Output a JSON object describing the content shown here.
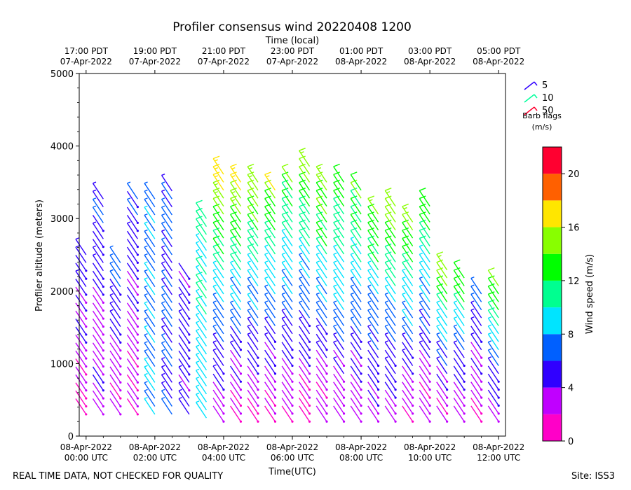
{
  "chart_data": {
    "type": "wind-barb",
    "title": "Profiler consensus wind 20220408 1200",
    "xlabel": "Time(UTC)",
    "xlabel_top": "Time (local)",
    "ylabel": "Profiler altitude (meters)",
    "ylim": [
      0,
      5000
    ],
    "y_ticks": [
      "0",
      "1000",
      "2000",
      "3000",
      "4000",
      "5000"
    ],
    "x_range_hours": [
      -0.2,
      12.2
    ],
    "x_ticks_bottom": [
      {
        "hour": 0,
        "line1": "08-Apr-2022",
        "line2": "00:00 UTC"
      },
      {
        "hour": 2,
        "line1": "08-Apr-2022",
        "line2": "02:00 UTC"
      },
      {
        "hour": 4,
        "line1": "08-Apr-2022",
        "line2": "04:00 UTC"
      },
      {
        "hour": 6,
        "line1": "08-Apr-2022",
        "line2": "06:00 UTC"
      },
      {
        "hour": 8,
        "line1": "08-Apr-2022",
        "line2": "08:00 UTC"
      },
      {
        "hour": 10,
        "line1": "08-Apr-2022",
        "line2": "10:00 UTC"
      },
      {
        "hour": 12,
        "line1": "08-Apr-2022",
        "line2": "12:00 UTC"
      }
    ],
    "x_ticks_top": [
      {
        "hour": 0,
        "line1": "17:00 PDT",
        "line2": "07-Apr-2022"
      },
      {
        "hour": 2,
        "line1": "19:00 PDT",
        "line2": "07-Apr-2022"
      },
      {
        "hour": 4,
        "line1": "21:00 PDT",
        "line2": "07-Apr-2022"
      },
      {
        "hour": 6,
        "line1": "23:00 PDT",
        "line2": "07-Apr-2022"
      },
      {
        "hour": 8,
        "line1": "01:00 PDT",
        "line2": "08-Apr-2022"
      },
      {
        "hour": 10,
        "line1": "03:00 PDT",
        "line2": "08-Apr-2022"
      },
      {
        "hour": 12,
        "line1": "05:00 PDT",
        "line2": "08-Apr-2022"
      }
    ],
    "legend": {
      "title_line1": "Barb flags",
      "title_line2": "(m/s)",
      "entries": [
        {
          "label": "5",
          "color": "#3000ff"
        },
        {
          "label": "10",
          "color": "#00ff9c"
        },
        {
          "label": "50",
          "color": "#ff0030"
        }
      ]
    },
    "colorbar": {
      "label": "Wind speed (m/s)",
      "range": [
        0,
        22
      ],
      "ticks": [
        0,
        4,
        8,
        12,
        16,
        20
      ],
      "bins": [
        {
          "from": 0,
          "to": 2,
          "color": "#ff00c8"
        },
        {
          "from": 2,
          "to": 4,
          "color": "#c000ff"
        },
        {
          "from": 4,
          "to": 6,
          "color": "#3000ff"
        },
        {
          "from": 6,
          "to": 8,
          "color": "#0060ff"
        },
        {
          "from": 8,
          "to": 10,
          "color": "#00e4ff"
        },
        {
          "from": 10,
          "to": 12,
          "color": "#00ff90"
        },
        {
          "from": 12,
          "to": 14,
          "color": "#00ff00"
        },
        {
          "from": 14,
          "to": 16,
          "color": "#88ff00"
        },
        {
          "from": 16,
          "to": 18,
          "color": "#ffe600"
        },
        {
          "from": 18,
          "to": 20,
          "color": "#ff6000"
        },
        {
          "from": 20,
          "to": 22,
          "color": "#ff0030"
        }
      ]
    },
    "profiles": [
      {
        "hour": 0.0,
        "alt_min": 300,
        "alt_max": 2600,
        "spd_low": 2,
        "spd_high": 6
      },
      {
        "hour": 0.5,
        "alt_min": 300,
        "alt_max": 3300,
        "spd_low": 3,
        "spd_high": 6
      },
      {
        "hour": 1.0,
        "alt_min": 300,
        "alt_max": 2400,
        "spd_low": 2,
        "spd_high": 7
      },
      {
        "hour": 1.5,
        "alt_min": 300,
        "alt_max": 3300,
        "spd_low": 2,
        "spd_high": 6
      },
      {
        "hour": 2.0,
        "alt_min": 300,
        "alt_max": 3350,
        "spd_low": 8,
        "spd_high": 7
      },
      {
        "hour": 2.5,
        "alt_min": 300,
        "alt_max": 3400,
        "spd_low": 6,
        "spd_high": 6
      },
      {
        "hour": 3.0,
        "alt_min": 300,
        "alt_max": 2200,
        "spd_low": 5,
        "spd_high": 4
      },
      {
        "hour": 3.5,
        "alt_min": 250,
        "alt_max": 3000,
        "spd_low": 9,
        "spd_high": 10
      },
      {
        "hour": 4.0,
        "alt_min": 200,
        "alt_max": 3700,
        "spd_low": 3,
        "spd_high": 18
      },
      {
        "hour": 4.5,
        "alt_min": 200,
        "alt_max": 3550,
        "spd_low": 2,
        "spd_high": 17
      },
      {
        "hour": 5.0,
        "alt_min": 200,
        "alt_max": 3500,
        "spd_low": 2,
        "spd_high": 16
      },
      {
        "hour": 5.5,
        "alt_min": 200,
        "alt_max": 3450,
        "spd_low": 2,
        "spd_high": 16
      },
      {
        "hour": 6.0,
        "alt_min": 200,
        "alt_max": 3550,
        "spd_low": 2,
        "spd_high": 14
      },
      {
        "hour": 6.5,
        "alt_min": 200,
        "alt_max": 3750,
        "spd_low": 2,
        "spd_high": 15
      },
      {
        "hour": 7.0,
        "alt_min": 200,
        "alt_max": 3550,
        "spd_low": 2,
        "spd_high": 16
      },
      {
        "hour": 7.5,
        "alt_min": 200,
        "alt_max": 3600,
        "spd_low": 3,
        "spd_high": 15
      },
      {
        "hour": 8.0,
        "alt_min": 200,
        "alt_max": 3450,
        "spd_low": 3,
        "spd_high": 14
      },
      {
        "hour": 8.5,
        "alt_min": 200,
        "alt_max": 3100,
        "spd_low": 3,
        "spd_high": 15
      },
      {
        "hour": 9.0,
        "alt_min": 200,
        "alt_max": 3200,
        "spd_low": 3,
        "spd_high": 16
      },
      {
        "hour": 9.5,
        "alt_min": 200,
        "alt_max": 3000,
        "spd_low": 2,
        "spd_high": 16
      },
      {
        "hour": 10.0,
        "alt_min": 200,
        "alt_max": 3250,
        "spd_low": 2,
        "spd_high": 14
      },
      {
        "hour": 10.5,
        "alt_min": 200,
        "alt_max": 2300,
        "spd_low": 2,
        "spd_high": 16
      },
      {
        "hour": 11.0,
        "alt_min": 200,
        "alt_max": 2200,
        "spd_low": 2,
        "spd_high": 14
      },
      {
        "hour": 11.5,
        "alt_min": 200,
        "alt_max": 2000,
        "spd_low": 2,
        "spd_high": 8
      },
      {
        "hour": 12.0,
        "alt_min": 200,
        "alt_max": 2100,
        "spd_low": 3,
        "spd_high": 14
      }
    ]
  },
  "footer": {
    "left": "REAL TIME DATA, NOT CHECKED FOR QUALITY",
    "right": "Site: ISS3"
  }
}
